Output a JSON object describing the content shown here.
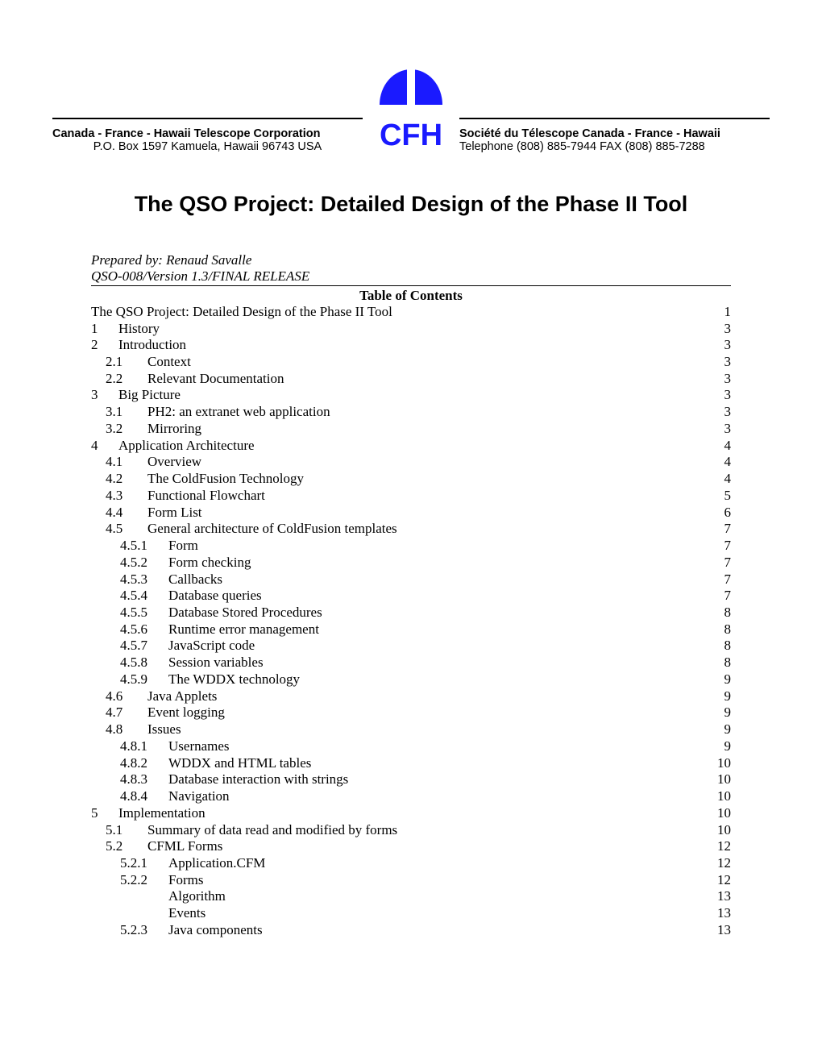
{
  "header": {
    "left_bold": "Canada - France - Hawaii Telescope Corporation",
    "left_plain": "P.O. Box 1597  Kamuela, Hawaii 96743   USA",
    "right_bold": "Société du Télescope   Canada - France - Hawaii",
    "right_plain": "Telephone (808) 885-7944    FAX (808) 885-7288",
    "logo_text": "CFH",
    "logo_fill": "#1a1aff"
  },
  "title": "The QSO Project: Detailed Design of the Phase II Tool",
  "prepared_by": "Prepared by: Renaud Savalle",
  "version_line": "QSO-008/Version 1.3/FINAL RELEASE",
  "toc_title": "Table of Contents",
  "toc": [
    {
      "level": 0,
      "num": "",
      "label": "The QSO Project: Detailed Design of the Phase II Tool",
      "page": "1"
    },
    {
      "level": 1,
      "num": "1",
      "label": "History",
      "page": "3"
    },
    {
      "level": 1,
      "num": "2",
      "label": "Introduction",
      "page": "3"
    },
    {
      "level": 2,
      "num": "2.1",
      "label": "Context",
      "page": "3"
    },
    {
      "level": 2,
      "num": "2.2",
      "label": "Relevant Documentation",
      "page": "3"
    },
    {
      "level": 1,
      "num": "3",
      "label": "Big Picture",
      "page": "3"
    },
    {
      "level": 2,
      "num": "3.1",
      "label": "PH2: an extranet web application",
      "page": "3"
    },
    {
      "level": 2,
      "num": "3.2",
      "label": "Mirroring",
      "page": "3"
    },
    {
      "level": 1,
      "num": "4",
      "label": "Application Architecture",
      "page": "4"
    },
    {
      "level": 2,
      "num": "4.1",
      "label": "Overview",
      "page": "4"
    },
    {
      "level": 2,
      "num": "4.2",
      "label": "The ColdFusion Technology",
      "page": "4"
    },
    {
      "level": 2,
      "num": "4.3",
      "label": "Functional Flowchart",
      "page": "5"
    },
    {
      "level": 2,
      "num": "4.4",
      "label": "Form List",
      "page": "6"
    },
    {
      "level": 2,
      "num": "4.5",
      "label": "General architecture of ColdFusion templates",
      "page": "7"
    },
    {
      "level": 3,
      "num": "4.5.1",
      "label": "Form",
      "page": "7"
    },
    {
      "level": 3,
      "num": "4.5.2",
      "label": "Form checking",
      "page": "7"
    },
    {
      "level": 3,
      "num": "4.5.3",
      "label": "Callbacks",
      "page": "7"
    },
    {
      "level": 3,
      "num": "4.5.4",
      "label": "Database queries",
      "page": "7"
    },
    {
      "level": 3,
      "num": "4.5.5",
      "label": "Database Stored Procedures",
      "page": "8"
    },
    {
      "level": 3,
      "num": "4.5.6",
      "label": "Runtime error management",
      "page": "8"
    },
    {
      "level": 3,
      "num": "4.5.7",
      "label": "JavaScript code",
      "page": "8"
    },
    {
      "level": 3,
      "num": "4.5.8",
      "label": "Session variables",
      "page": "8"
    },
    {
      "level": 3,
      "num": "4.5.9",
      "label": "The WDDX technology",
      "page": "9"
    },
    {
      "level": 2,
      "num": "4.6",
      "label": "Java Applets",
      "page": "9"
    },
    {
      "level": 2,
      "num": "4.7",
      "label": "Event logging",
      "page": "9"
    },
    {
      "level": 2,
      "num": "4.8",
      "label": "Issues",
      "page": "9"
    },
    {
      "level": 3,
      "num": "4.8.1",
      "label": "Usernames",
      "page": "9"
    },
    {
      "level": 3,
      "num": "4.8.2",
      "label": "WDDX and HTML tables",
      "page": "10"
    },
    {
      "level": 3,
      "num": "4.8.3",
      "label": "Database interaction with strings",
      "page": "10"
    },
    {
      "level": 3,
      "num": "4.8.4",
      "label": "Navigation",
      "page": "10"
    },
    {
      "level": 1,
      "num": "5",
      "label": "Implementation",
      "page": "10"
    },
    {
      "level": 2,
      "num": "5.1",
      "label": "Summary of data read and modified by forms",
      "page": "10"
    },
    {
      "level": 2,
      "num": "5.2",
      "label": "CFML Forms",
      "page": "12"
    },
    {
      "level": 3,
      "num": "5.2.1",
      "label": "Application.CFM",
      "page": "12"
    },
    {
      "level": 3,
      "num": "5.2.2",
      "label": "Forms",
      "page": "12"
    },
    {
      "level": 4,
      "num": "",
      "label": "Algorithm",
      "page": "13"
    },
    {
      "level": 4,
      "num": "",
      "label": "Events",
      "page": "13"
    },
    {
      "level": 3,
      "num": "5.2.3",
      "label": "Java components",
      "page": "13"
    }
  ]
}
